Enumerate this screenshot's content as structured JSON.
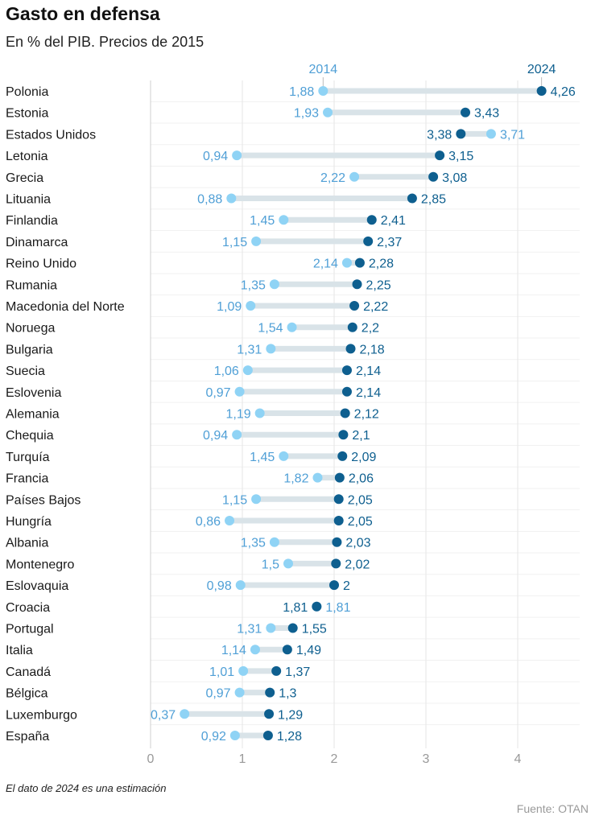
{
  "title": "Gasto en defensa",
  "subtitle": "En % del PIB. Precios de 2015",
  "note": "El dato de 2024 es una estimación",
  "source": "Fuente: OTAN",
  "colors": {
    "y2014": "#8fd3f5",
    "y2014_text": "#4f9fd6",
    "y2024": "#0e5f8f",
    "connector": "#d9e3e8",
    "grid": "#e6e6e6",
    "axis_text": "#999999"
  },
  "chart_data": {
    "type": "dumbbell",
    "series": [
      {
        "name": "2014"
      },
      {
        "name": "2024"
      }
    ],
    "xlim": [
      0,
      4.6
    ],
    "xticks": [
      0,
      1,
      2,
      3,
      4
    ],
    "x_tick_labels": [
      "0",
      "1",
      "2",
      "3",
      "4"
    ],
    "grid": true,
    "rows": [
      {
        "country": "Polonia",
        "v2014": 1.88,
        "v2024": 4.26,
        "l2014": "1,88",
        "l2024": "4,26"
      },
      {
        "country": "Estonia",
        "v2014": 1.93,
        "v2024": 3.43,
        "l2014": "1,93",
        "l2024": "3,43"
      },
      {
        "country": "Estados Unidos",
        "v2014": 3.71,
        "v2024": 3.38,
        "l2014": "3,71",
        "l2024": "3,38"
      },
      {
        "country": "Letonia",
        "v2014": 0.94,
        "v2024": 3.15,
        "l2014": "0,94",
        "l2024": "3,15"
      },
      {
        "country": "Grecia",
        "v2014": 2.22,
        "v2024": 3.08,
        "l2014": "2,22",
        "l2024": "3,08"
      },
      {
        "country": "Lituania",
        "v2014": 0.88,
        "v2024": 2.85,
        "l2014": "0,88",
        "l2024": "2,85"
      },
      {
        "country": "Finlandia",
        "v2014": 1.45,
        "v2024": 2.41,
        "l2014": "1,45",
        "l2024": "2,41"
      },
      {
        "country": "Dinamarca",
        "v2014": 1.15,
        "v2024": 2.37,
        "l2014": "1,15",
        "l2024": "2,37"
      },
      {
        "country": "Reino Unido",
        "v2014": 2.14,
        "v2024": 2.28,
        "l2014": "2,14",
        "l2024": "2,28"
      },
      {
        "country": "Rumania",
        "v2014": 1.35,
        "v2024": 2.25,
        "l2014": "1,35",
        "l2024": "2,25"
      },
      {
        "country": "Macedonia del Norte",
        "v2014": 1.09,
        "v2024": 2.22,
        "l2014": "1,09",
        "l2024": "2,22"
      },
      {
        "country": "Noruega",
        "v2014": 1.54,
        "v2024": 2.2,
        "l2014": "1,54",
        "l2024": "2,2"
      },
      {
        "country": "Bulgaria",
        "v2014": 1.31,
        "v2024": 2.18,
        "l2014": "1,31",
        "l2024": "2,18"
      },
      {
        "country": "Suecia",
        "v2014": 1.06,
        "v2024": 2.14,
        "l2014": "1,06",
        "l2024": "2,14"
      },
      {
        "country": "Eslovenia",
        "v2014": 0.97,
        "v2024": 2.14,
        "l2014": "0,97",
        "l2024": "2,14"
      },
      {
        "country": "Alemania",
        "v2014": 1.19,
        "v2024": 2.12,
        "l2014": "1,19",
        "l2024": "2,12"
      },
      {
        "country": "Chequia",
        "v2014": 0.94,
        "v2024": 2.1,
        "l2014": "0,94",
        "l2024": "2,1"
      },
      {
        "country": "Turquía",
        "v2014": 1.45,
        "v2024": 2.09,
        "l2014": "1,45",
        "l2024": "2,09"
      },
      {
        "country": "Francia",
        "v2014": 1.82,
        "v2024": 2.06,
        "l2014": "1,82",
        "l2024": "2,06"
      },
      {
        "country": "Países Bajos",
        "v2014": 1.15,
        "v2024": 2.05,
        "l2014": "1,15",
        "l2024": "2,05"
      },
      {
        "country": "Hungría",
        "v2014": 0.86,
        "v2024": 2.05,
        "l2014": "0,86",
        "l2024": "2,05"
      },
      {
        "country": "Albania",
        "v2014": 1.35,
        "v2024": 2.03,
        "l2014": "1,35",
        "l2024": "2,03"
      },
      {
        "country": "Montenegro",
        "v2014": 1.5,
        "v2024": 2.02,
        "l2014": "1,5",
        "l2024": "2,02"
      },
      {
        "country": "Eslovaquia",
        "v2014": 0.98,
        "v2024": 2.0,
        "l2014": "0,98",
        "l2024": "2"
      },
      {
        "country": "Croacia",
        "v2014": 1.81,
        "v2024": 1.81,
        "l2014": "1,81",
        "l2024": "1,81"
      },
      {
        "country": "Portugal",
        "v2014": 1.31,
        "v2024": 1.55,
        "l2014": "1,31",
        "l2024": "1,55"
      },
      {
        "country": "Italia",
        "v2014": 1.14,
        "v2024": 1.49,
        "l2014": "1,14",
        "l2024": "1,49"
      },
      {
        "country": "Canadá",
        "v2014": 1.01,
        "v2024": 1.37,
        "l2014": "1,01",
        "l2024": "1,37"
      },
      {
        "country": "Bélgica",
        "v2014": 0.97,
        "v2024": 1.3,
        "l2014": "0,97",
        "l2024": "1,3"
      },
      {
        "country": "Luxemburgo",
        "v2014": 0.37,
        "v2024": 1.29,
        "l2014": "0,37",
        "l2024": "1,29"
      },
      {
        "country": "España",
        "v2014": 0.92,
        "v2024": 1.28,
        "l2014": "0,92",
        "l2024": "1,28"
      }
    ]
  }
}
